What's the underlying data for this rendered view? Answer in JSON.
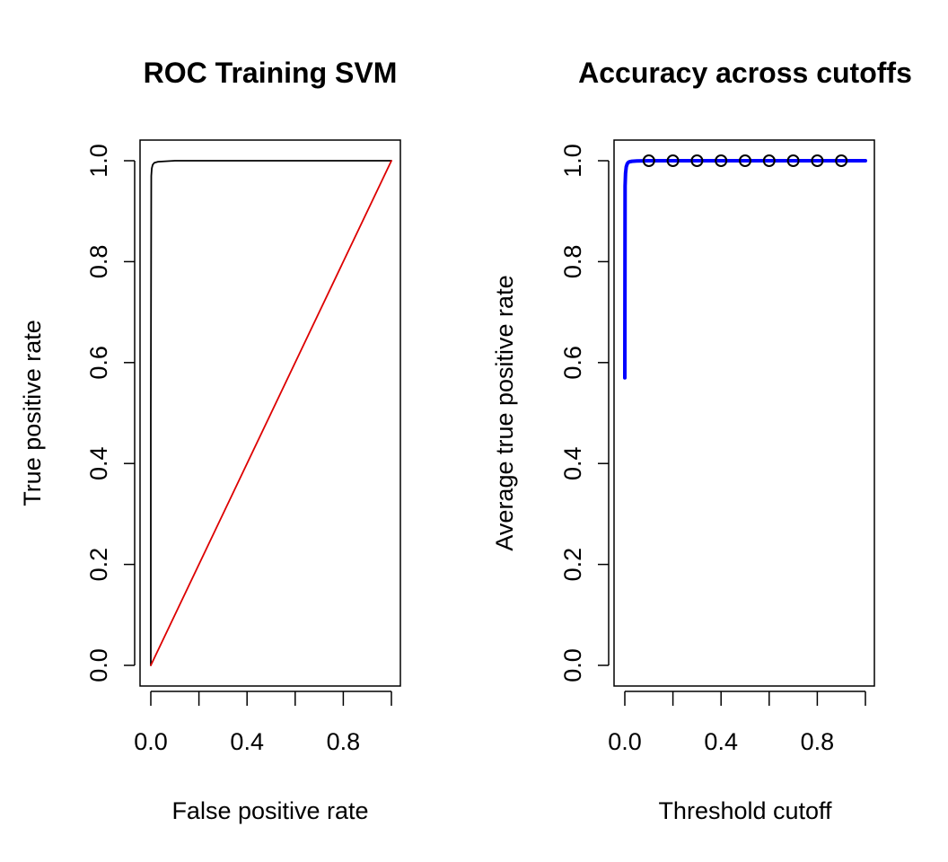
{
  "chart_data": [
    {
      "type": "line",
      "title": "ROC Training SVM",
      "xlabel": "False positive rate",
      "ylabel": "True positive rate",
      "xlim": [
        0,
        1
      ],
      "ylim": [
        0,
        1
      ],
      "x_ticks": [
        0.0,
        0.2,
        0.4,
        0.6,
        0.8,
        1.0
      ],
      "x_tick_labels": [
        "0.0",
        "",
        "0.4",
        "",
        "0.8",
        ""
      ],
      "y_ticks": [
        0.0,
        0.2,
        0.4,
        0.6,
        0.8,
        1.0
      ],
      "y_tick_labels": [
        "0.0",
        "0.2",
        "0.4",
        "0.6",
        "0.8",
        "1.0"
      ],
      "grid": false,
      "series": [
        {
          "color": "#000000",
          "style": "line",
          "x": [
            0.0,
            0.0,
            0.002,
            0.004,
            0.008,
            0.015,
            0.03,
            0.06,
            0.1,
            0.2,
            0.4,
            0.6,
            0.8,
            1.0
          ],
          "y": [
            0.0,
            0.5,
            0.97,
            0.985,
            0.992,
            0.996,
            0.998,
            0.999,
            1.0,
            1.0,
            1.0,
            1.0,
            1.0,
            1.0
          ]
        },
        {
          "color": "#dd0000",
          "style": "line",
          "x": [
            0.0,
            1.0
          ],
          "y": [
            0.0,
            1.0
          ]
        }
      ]
    },
    {
      "type": "line",
      "title": "Accuracy across cutoffs",
      "xlabel": "Threshold cutoff",
      "ylabel": "Average true positive rate",
      "xlim": [
        0,
        1
      ],
      "ylim": [
        0,
        1
      ],
      "x_ticks": [
        0.0,
        0.2,
        0.4,
        0.6,
        0.8,
        1.0
      ],
      "x_tick_labels": [
        "0.0",
        "",
        "0.4",
        "",
        "0.8",
        ""
      ],
      "y_ticks": [
        0.0,
        0.2,
        0.4,
        0.6,
        0.8,
        1.0
      ],
      "y_tick_labels": [
        "0.0",
        "0.2",
        "0.4",
        "0.6",
        "0.8",
        "1.0"
      ],
      "grid": false,
      "series": [
        {
          "color": "#0000ff",
          "style": "line",
          "x": [
            0.0,
            0.001,
            0.003,
            0.006,
            0.01,
            0.015,
            0.02,
            0.03,
            0.05,
            0.1,
            0.2,
            0.4,
            0.6,
            0.8,
            1.0
          ],
          "y": [
            0.57,
            0.95,
            0.975,
            0.988,
            0.994,
            0.997,
            0.998,
            0.999,
            0.9995,
            1.0,
            1.0,
            1.0,
            1.0,
            1.0,
            1.0
          ]
        },
        {
          "color": "#000000",
          "style": "points",
          "x": [
            0.1,
            0.2,
            0.3,
            0.4,
            0.5,
            0.6,
            0.7,
            0.8,
            0.9
          ],
          "y": [
            1.0,
            1.0,
            1.0,
            1.0,
            1.0,
            1.0,
            1.0,
            1.0,
            1.0
          ]
        }
      ]
    }
  ]
}
